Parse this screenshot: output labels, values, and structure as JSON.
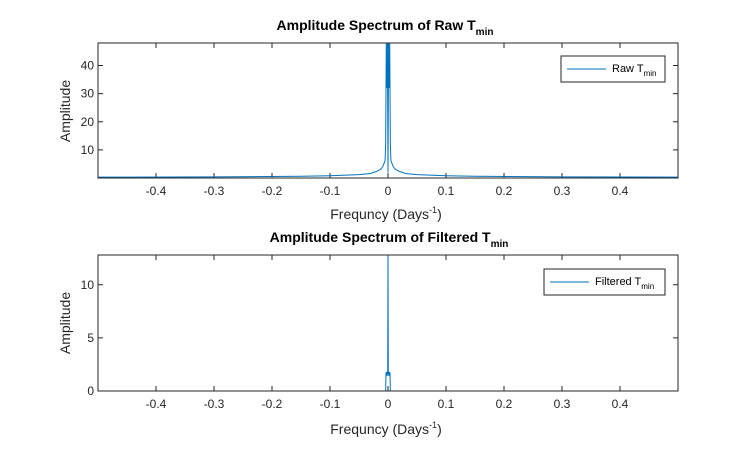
{
  "chart_data": [
    {
      "type": "line",
      "title": "Amplitude Spectrum of Raw T",
      "title_sub": "min",
      "xlabel": "Frequncy (Days",
      "xlabel_sup": "-1",
      "xlabel_end": ")",
      "ylabel": "Amplitude",
      "xlim": [
        -0.5,
        0.5
      ],
      "ylim": [
        0,
        48
      ],
      "xticks": [
        -0.4,
        -0.3,
        -0.2,
        -0.1,
        0,
        0.1,
        0.2,
        0.3,
        0.4
      ],
      "yticks": [
        10,
        20,
        30,
        40
      ],
      "grid": false,
      "legend_position": "top-right",
      "line_color": "#0072BD",
      "series": [
        {
          "name": "Raw T",
          "name_sub": "min",
          "x": [
            -0.5,
            -0.3,
            -0.15,
            -0.1,
            -0.05,
            -0.03,
            -0.02,
            -0.012,
            -0.008,
            -0.005,
            -0.004,
            -0.003,
            -0.002,
            -0.001,
            0,
            0.001,
            0.002,
            0.003,
            0.004,
            0.005,
            0.008,
            0.012,
            0.02,
            0.03,
            0.05,
            0.1,
            0.15,
            0.3,
            0.5
          ],
          "y": [
            0.3,
            0.4,
            0.6,
            0.8,
            1.2,
            1.6,
            2.3,
            3.2,
            4.5,
            6.2,
            12.5,
            48,
            32,
            48,
            2,
            48,
            32,
            48,
            12.5,
            6.2,
            4.5,
            3.2,
            2.3,
            1.6,
            1.2,
            0.8,
            0.6,
            0.4,
            0.3
          ]
        }
      ]
    },
    {
      "type": "line",
      "title": "Amplitude Spectrum of Filtered T",
      "title_sub": "min",
      "xlabel": "Frequncy (Days",
      "xlabel_sup": "-1",
      "xlabel_end": ")",
      "ylabel": "Amplitude",
      "xlim": [
        -0.5,
        0.5
      ],
      "ylim": [
        0,
        12.8
      ],
      "xticks": [
        -0.4,
        -0.3,
        -0.2,
        -0.1,
        0,
        0.1,
        0.2,
        0.3,
        0.4
      ],
      "yticks": [
        0,
        5,
        10
      ],
      "grid": false,
      "legend_position": "top-right",
      "line_color": "#0072BD",
      "series": [
        {
          "name": "Filtered T",
          "name_sub": "min",
          "x": [
            -0.5,
            -0.004,
            -0.0035,
            -0.003,
            -0.0025,
            -0.002,
            -0.0015,
            -0.001,
            -0.0005,
            0,
            0.0005,
            0.001,
            0.0015,
            0.002,
            0.0025,
            0.003,
            0.0035,
            0.004,
            0.5
          ],
          "y": [
            0,
            0,
            1.6,
            1.8,
            1.5,
            1.7,
            1.4,
            1.8,
            1.6,
            12.8,
            1.6,
            1.8,
            1.4,
            1.7,
            1.5,
            1.8,
            1.6,
            0,
            0
          ]
        }
      ]
    }
  ]
}
